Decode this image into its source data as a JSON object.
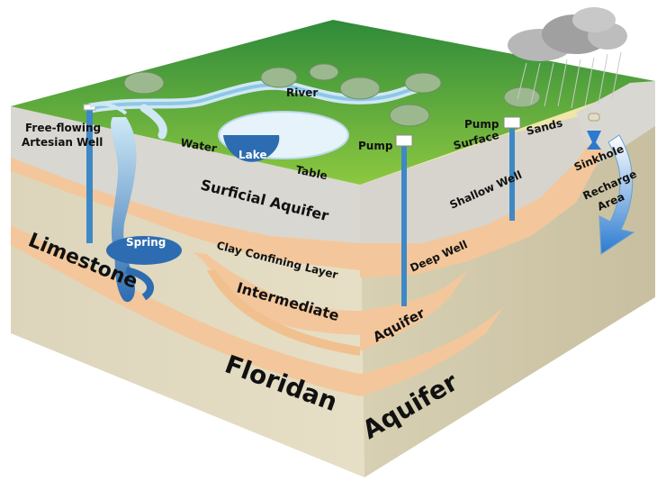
{
  "labels": {
    "river": "River",
    "lake": "Lake",
    "water": "Water",
    "table": "Table",
    "free_flowing_line1": "Free-flowing",
    "free_flowing_line2": "Artesian Well",
    "spring": "Spring",
    "limestone": "Limestone",
    "surficial_aquifer": "Surficial Aquifer",
    "clay_confining_layer": "Clay Confining Layer",
    "intermediate": "Intermediate",
    "floridan": "Floridan",
    "aquifer_bottom": "Aquifer",
    "aquifer_middle": "Aquifer",
    "pump_left": "Pump",
    "pump_right": "Pump",
    "surface": "Surface",
    "sands": "Sands",
    "shallow_well": "Shallow Well",
    "deep_well": "Deep Well",
    "sinkhole": "Sinkhole",
    "recharge_line1": "Recharge",
    "recharge_line2": "Area"
  },
  "colors": {
    "grass": "#5aa83a",
    "grass_dark": "#3f8a2a",
    "limestone_front": "#d9d2b8",
    "limestone_side": "#c9c1a4",
    "surficial_layer": "#d8d6d0",
    "clay_layer": "#f2c79a",
    "water": "#2f6fb0",
    "water_light": "#bfe0f2",
    "well_pipe": "#3f88c6",
    "cloud": "#a9a9a9",
    "text": "#111111"
  }
}
